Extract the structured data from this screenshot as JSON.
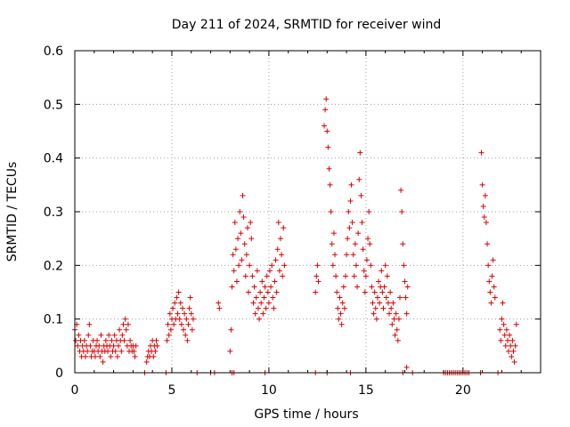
{
  "chart_data": {
    "type": "scatter",
    "title": "Day 211 of 2024, SRMTID for receiver wind",
    "xlabel": "GPS time / hours",
    "ylabel": "SRMTID / TECUs",
    "xlim": [
      0,
      24
    ],
    "ylim": [
      0,
      0.6
    ],
    "x_ticks": [
      0,
      5,
      10,
      15,
      20
    ],
    "y_ticks": [
      0,
      0.1,
      0.2,
      0.3,
      0.4,
      0.5,
      0.6
    ],
    "x_tick_labels": [
      "0",
      "5",
      "10",
      "15",
      "20"
    ],
    "y_tick_labels": [
      "0",
      "0.1",
      "0.2",
      "0.3",
      "0.4",
      "0.5",
      "0.6"
    ],
    "grid": true,
    "marker": "+",
    "color": "#e00000",
    "series": [
      {
        "name": "SRMTID",
        "points": [
          [
            0.0,
            0.08
          ],
          [
            0.05,
            0.06
          ],
          [
            0.1,
            0.09
          ],
          [
            0.15,
            0.05
          ],
          [
            0.2,
            0.07
          ],
          [
            0.25,
            0.04
          ],
          [
            0.3,
            0.06
          ],
          [
            0.35,
            0.03
          ],
          [
            0.4,
            0.05
          ],
          [
            0.45,
            0.04
          ],
          [
            0.5,
            0.06
          ],
          [
            0.55,
            0.03
          ],
          [
            0.6,
            0.05
          ],
          [
            0.65,
            0.04
          ],
          [
            0.7,
            0.07
          ],
          [
            0.75,
            0.09
          ],
          [
            0.8,
            0.05
          ],
          [
            0.85,
            0.03
          ],
          [
            0.9,
            0.04
          ],
          [
            0.95,
            0.06
          ],
          [
            1.0,
            0.04
          ],
          [
            1.05,
            0.03
          ],
          [
            1.1,
            0.05
          ],
          [
            1.15,
            0.06
          ],
          [
            1.2,
            0.04
          ],
          [
            1.25,
            0.05
          ],
          [
            1.3,
            0.03
          ],
          [
            1.35,
            0.07
          ],
          [
            1.4,
            0.04
          ],
          [
            1.45,
            0.02
          ],
          [
            1.5,
            0.05
          ],
          [
            1.55,
            0.04
          ],
          [
            1.6,
            0.06
          ],
          [
            1.65,
            0.05
          ],
          [
            1.7,
            0.04
          ],
          [
            1.75,
            0.07
          ],
          [
            1.8,
            0.05
          ],
          [
            1.85,
            0.03
          ],
          [
            1.9,
            0.06
          ],
          [
            1.95,
            0.04
          ],
          [
            2.0,
            0.05
          ],
          [
            2.05,
            0.07
          ],
          [
            2.1,
            0.04
          ],
          [
            2.15,
            0.06
          ],
          [
            2.2,
            0.03
          ],
          [
            2.25,
            0.05
          ],
          [
            2.3,
            0.08
          ],
          [
            2.35,
            0.06
          ],
          [
            2.4,
            0.04
          ],
          [
            2.45,
            0.07
          ],
          [
            2.5,
            0.09
          ],
          [
            2.55,
            0.06
          ],
          [
            2.6,
            0.1
          ],
          [
            2.65,
            0.08
          ],
          [
            2.7,
            0.05
          ],
          [
            2.75,
            0.09
          ],
          [
            2.8,
            0.04
          ],
          [
            2.85,
            0.06
          ],
          [
            2.9,
            0.05
          ],
          [
            2.95,
            0.04
          ],
          [
            3.0,
            0.05
          ],
          [
            3.05,
            0.04
          ],
          [
            3.1,
            0.03
          ],
          [
            3.15,
            0.05
          ],
          [
            3.6,
            0.0
          ],
          [
            3.7,
            0.02
          ],
          [
            3.75,
            0.03
          ],
          [
            3.8,
            0.04
          ],
          [
            3.85,
            0.03
          ],
          [
            3.9,
            0.05
          ],
          [
            3.95,
            0.04
          ],
          [
            4.0,
            0.06
          ],
          [
            4.05,
            0.03
          ],
          [
            4.1,
            0.05
          ],
          [
            4.15,
            0.04
          ],
          [
            4.2,
            0.06
          ],
          [
            4.25,
            0.05
          ],
          [
            4.7,
            0.0
          ],
          [
            4.75,
            0.06
          ],
          [
            4.8,
            0.09
          ],
          [
            4.85,
            0.07
          ],
          [
            4.9,
            0.11
          ],
          [
            4.95,
            0.08
          ],
          [
            5.0,
            0.1
          ],
          [
            5.05,
            0.12
          ],
          [
            5.1,
            0.09
          ],
          [
            5.15,
            0.13
          ],
          [
            5.2,
            0.1
          ],
          [
            5.25,
            0.14
          ],
          [
            5.3,
            0.11
          ],
          [
            5.35,
            0.15
          ],
          [
            5.4,
            0.1
          ],
          [
            5.45,
            0.13
          ],
          [
            5.5,
            0.09
          ],
          [
            5.55,
            0.12
          ],
          [
            5.6,
            0.08
          ],
          [
            5.65,
            0.11
          ],
          [
            5.7,
            0.07
          ],
          [
            5.75,
            0.1
          ],
          [
            5.8,
            0.06
          ],
          [
            5.85,
            0.09
          ],
          [
            5.9,
            0.12
          ],
          [
            5.95,
            0.14
          ],
          [
            6.0,
            0.11
          ],
          [
            6.05,
            0.08
          ],
          [
            6.1,
            0.1
          ],
          [
            6.3,
            0.0
          ],
          [
            7.0,
            0.0
          ],
          [
            7.4,
            0.13
          ],
          [
            7.45,
            0.12
          ],
          [
            7.2,
            0.0
          ],
          [
            8.1,
            0.0
          ],
          [
            8.0,
            0.04
          ],
          [
            8.05,
            0.08
          ],
          [
            8.1,
            0.16
          ],
          [
            8.15,
            0.22
          ],
          [
            8.2,
            0.19
          ],
          [
            8.25,
            0.28
          ],
          [
            8.3,
            0.23
          ],
          [
            8.35,
            0.17
          ],
          [
            8.4,
            0.25
          ],
          [
            8.45,
            0.2
          ],
          [
            8.5,
            0.3
          ],
          [
            8.55,
            0.26
          ],
          [
            8.6,
            0.21
          ],
          [
            8.65,
            0.33
          ],
          [
            8.7,
            0.29
          ],
          [
            8.75,
            0.24
          ],
          [
            8.8,
            0.18
          ],
          [
            8.85,
            0.22
          ],
          [
            8.9,
            0.27
          ],
          [
            8.95,
            0.15
          ],
          [
            9.0,
            0.2
          ],
          [
            9.05,
            0.28
          ],
          [
            9.1,
            0.25
          ],
          [
            9.15,
            0.18
          ],
          [
            9.2,
            0.13
          ],
          [
            9.25,
            0.16
          ],
          [
            9.3,
            0.11
          ],
          [
            9.35,
            0.14
          ],
          [
            9.4,
            0.19
          ],
          [
            9.45,
            0.12
          ],
          [
            9.5,
            0.1
          ],
          [
            9.55,
            0.15
          ],
          [
            9.6,
            0.13
          ],
          [
            9.65,
            0.17
          ],
          [
            9.7,
            0.11
          ],
          [
            9.75,
            0.14
          ],
          [
            9.8,
            0.16
          ],
          [
            9.85,
            0.12
          ],
          [
            9.9,
            0.18
          ],
          [
            9.95,
            0.15
          ],
          [
            10.0,
            0.13
          ],
          [
            10.05,
            0.19
          ],
          [
            10.1,
            0.16
          ],
          [
            10.15,
            0.2
          ],
          [
            10.2,
            0.14
          ],
          [
            10.25,
            0.12
          ],
          [
            10.3,
            0.17
          ],
          [
            10.35,
            0.21
          ],
          [
            10.4,
            0.15
          ],
          [
            10.45,
            0.23
          ],
          [
            10.5,
            0.28
          ],
          [
            10.55,
            0.19
          ],
          [
            10.6,
            0.25
          ],
          [
            10.65,
            0.22
          ],
          [
            10.7,
            0.18
          ],
          [
            10.75,
            0.27
          ],
          [
            10.8,
            0.2
          ],
          [
            9.8,
            0.0
          ],
          [
            8.2,
            0.0
          ],
          [
            12.4,
            0.0
          ],
          [
            12.4,
            0.15
          ],
          [
            12.45,
            0.18
          ],
          [
            12.5,
            0.2
          ],
          [
            12.55,
            0.17
          ],
          [
            13.0,
            0.0
          ],
          [
            12.85,
            0.46
          ],
          [
            12.9,
            0.49
          ],
          [
            12.95,
            0.51
          ],
          [
            13.0,
            0.45
          ],
          [
            13.05,
            0.42
          ],
          [
            13.1,
            0.38
          ],
          [
            13.15,
            0.35
          ],
          [
            13.2,
            0.3
          ],
          [
            13.25,
            0.24
          ],
          [
            13.3,
            0.2
          ],
          [
            13.35,
            0.26
          ],
          [
            13.4,
            0.22
          ],
          [
            13.45,
            0.18
          ],
          [
            13.5,
            0.15
          ],
          [
            13.55,
            0.12
          ],
          [
            13.6,
            0.1
          ],
          [
            13.65,
            0.14
          ],
          [
            13.7,
            0.11
          ],
          [
            13.75,
            0.09
          ],
          [
            13.8,
            0.13
          ],
          [
            13.85,
            0.16
          ],
          [
            13.9,
            0.12
          ],
          [
            13.95,
            0.18
          ],
          [
            14.0,
            0.22
          ],
          [
            14.05,
            0.25
          ],
          [
            14.1,
            0.3
          ],
          [
            14.15,
            0.27
          ],
          [
            14.2,
            0.32
          ],
          [
            14.25,
            0.35
          ],
          [
            14.3,
            0.28
          ],
          [
            14.35,
            0.22
          ],
          [
            14.4,
            0.18
          ],
          [
            14.45,
            0.24
          ],
          [
            14.5,
            0.2
          ],
          [
            14.55,
            0.16
          ],
          [
            14.6,
            0.26
          ],
          [
            14.65,
            0.36
          ],
          [
            14.7,
            0.41
          ],
          [
            14.75,
            0.33
          ],
          [
            14.8,
            0.28
          ],
          [
            14.85,
            0.23
          ],
          [
            14.9,
            0.19
          ],
          [
            14.95,
            0.15
          ],
          [
            15.0,
            0.18
          ],
          [
            15.05,
            0.21
          ],
          [
            15.1,
            0.25
          ],
          [
            15.15,
            0.3
          ],
          [
            15.2,
            0.24
          ],
          [
            15.25,
            0.2
          ],
          [
            15.3,
            0.16
          ],
          [
            15.35,
            0.13
          ],
          [
            15.4,
            0.11
          ],
          [
            15.45,
            0.15
          ],
          [
            15.5,
            0.12
          ],
          [
            15.55,
            0.1
          ],
          [
            15.6,
            0.14
          ],
          [
            15.65,
            0.17
          ],
          [
            15.7,
            0.13
          ],
          [
            15.75,
            0.16
          ],
          [
            15.8,
            0.19
          ],
          [
            15.85,
            0.15
          ],
          [
            15.9,
            0.12
          ],
          [
            15.95,
            0.16
          ],
          [
            16.0,
            0.2
          ],
          [
            16.05,
            0.14
          ],
          [
            16.1,
            0.18
          ],
          [
            16.15,
            0.13
          ],
          [
            16.2,
            0.11
          ],
          [
            16.25,
            0.15
          ],
          [
            16.3,
            0.12
          ],
          [
            16.35,
            0.09
          ],
          [
            16.4,
            0.13
          ],
          [
            16.45,
            0.1
          ],
          [
            16.5,
            0.07
          ],
          [
            16.55,
            0.11
          ],
          [
            16.6,
            0.08
          ],
          [
            16.65,
            0.06
          ],
          [
            16.7,
            0.1
          ],
          [
            16.75,
            0.14
          ],
          [
            16.8,
            0.34
          ],
          [
            16.85,
            0.3
          ],
          [
            16.9,
            0.24
          ],
          [
            16.95,
            0.2
          ],
          [
            17.0,
            0.17
          ],
          [
            17.05,
            0.14
          ],
          [
            17.1,
            0.11
          ],
          [
            17.15,
            0.16
          ],
          [
            14.2,
            0.0
          ],
          [
            16.9,
            0.0
          ],
          [
            17.1,
            0.01
          ],
          [
            17.4,
            0.0
          ],
          [
            19.0,
            0.0
          ],
          [
            19.1,
            0.0
          ],
          [
            19.2,
            0.0
          ],
          [
            19.3,
            0.0
          ],
          [
            19.4,
            0.0
          ],
          [
            19.5,
            0.0
          ],
          [
            19.6,
            0.0
          ],
          [
            19.7,
            0.0
          ],
          [
            19.8,
            0.0
          ],
          [
            19.9,
            0.0
          ],
          [
            20.0,
            0.0
          ],
          [
            20.1,
            0.0
          ],
          [
            20.2,
            0.0
          ],
          [
            20.3,
            0.0
          ],
          [
            20.9,
            0.0
          ],
          [
            21.8,
            0.0
          ],
          [
            20.95,
            0.41
          ],
          [
            21.0,
            0.35
          ],
          [
            21.05,
            0.31
          ],
          [
            21.1,
            0.29
          ],
          [
            21.15,
            0.33
          ],
          [
            21.2,
            0.28
          ],
          [
            21.25,
            0.24
          ],
          [
            21.3,
            0.2
          ],
          [
            21.35,
            0.17
          ],
          [
            21.4,
            0.15
          ],
          [
            21.45,
            0.13
          ],
          [
            21.5,
            0.18
          ],
          [
            21.55,
            0.21
          ],
          [
            21.6,
            0.16
          ],
          [
            21.65,
            0.14
          ],
          [
            21.9,
            0.08
          ],
          [
            21.95,
            0.06
          ],
          [
            22.0,
            0.1
          ],
          [
            22.05,
            0.13
          ],
          [
            22.1,
            0.09
          ],
          [
            22.15,
            0.07
          ],
          [
            22.2,
            0.05
          ],
          [
            22.25,
            0.08
          ],
          [
            22.3,
            0.06
          ],
          [
            22.35,
            0.04
          ],
          [
            22.4,
            0.07
          ],
          [
            22.45,
            0.05
          ],
          [
            22.5,
            0.03
          ],
          [
            22.55,
            0.06
          ],
          [
            22.6,
            0.04
          ],
          [
            22.65,
            0.02
          ],
          [
            22.7,
            0.05
          ],
          [
            22.75,
            0.09
          ]
        ]
      }
    ]
  }
}
